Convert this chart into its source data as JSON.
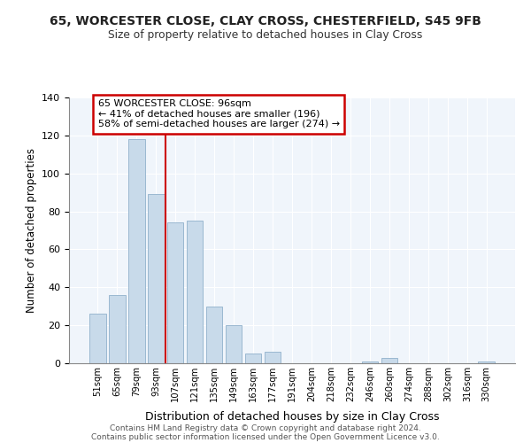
{
  "title1": "65, WORCESTER CLOSE, CLAY CROSS, CHESTERFIELD, S45 9FB",
  "title2": "Size of property relative to detached houses in Clay Cross",
  "xlabel": "Distribution of detached houses by size in Clay Cross",
  "ylabel": "Number of detached properties",
  "bar_labels": [
    "51sqm",
    "65sqm",
    "79sqm",
    "93sqm",
    "107sqm",
    "121sqm",
    "135sqm",
    "149sqm",
    "163sqm",
    "177sqm",
    "191sqm",
    "204sqm",
    "218sqm",
    "232sqm",
    "246sqm",
    "260sqm",
    "274sqm",
    "288sqm",
    "302sqm",
    "316sqm",
    "330sqm"
  ],
  "bar_values": [
    26,
    36,
    118,
    89,
    74,
    75,
    30,
    20,
    5,
    6,
    0,
    0,
    0,
    0,
    1,
    3,
    0,
    0,
    0,
    0,
    1
  ],
  "bar_color": "#c8daea",
  "bar_edge_color": "#9ab8d0",
  "vline_color": "#cc0000",
  "vline_x_index": 3,
  "ylim": [
    0,
    140
  ],
  "yticks": [
    0,
    20,
    40,
    60,
    80,
    100,
    120,
    140
  ],
  "annotation_line1": "65 WORCESTER CLOSE: 96sqm",
  "annotation_line2": "← 41% of detached houses are smaller (196)",
  "annotation_line3": "58% of semi-detached houses are larger (274) →",
  "annotation_box_color": "#ffffff",
  "annotation_box_edge": "#cc0000",
  "footer1": "Contains HM Land Registry data © Crown copyright and database right 2024.",
  "footer2": "Contains public sector information licensed under the Open Government Licence v3.0.",
  "bg_color": "#f0f4f8"
}
